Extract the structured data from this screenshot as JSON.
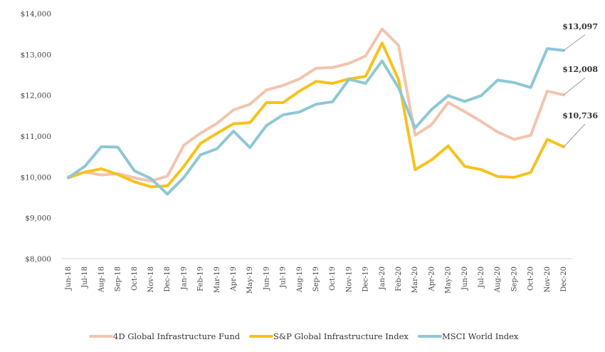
{
  "chart_data": {
    "type": "line",
    "categories": [
      "Jun-18",
      "Jul-18",
      "Aug-18",
      "Sep-18",
      "Oct-18",
      "Nov-18",
      "Dec-18",
      "Jan-19",
      "Feb-19",
      "Mar-19",
      "Apr-19",
      "May-19",
      "Jun-19",
      "Jul-19",
      "Aug-19",
      "Sep-19",
      "Oct-19",
      "Nov-19",
      "Dec-19",
      "Jan-20",
      "Feb-20",
      "Mar-20",
      "Apr-20",
      "May-20",
      "Jun-20",
      "Jul-20",
      "Aug-20",
      "Sep-20",
      "Oct-20",
      "Nov-20",
      "Dec-20"
    ],
    "yticks": [
      8000,
      9000,
      10000,
      11000,
      12000,
      13000,
      14000
    ],
    "ytick_labels": [
      "$8,000",
      "$9,000",
      "$10,000",
      "$11,000",
      "$12,000",
      "$13,000",
      "$14,000"
    ],
    "ylim": [
      8000,
      14000
    ],
    "series": [
      {
        "name": "4D Global Infrastructure Fund",
        "color": "#f2c4ae",
        "values": [
          10000,
          10120,
          10050,
          10080,
          9980,
          9900,
          10020,
          10780,
          11070,
          11310,
          11640,
          11780,
          12130,
          12240,
          12400,
          12660,
          12680,
          12780,
          12960,
          13620,
          13220,
          11020,
          11280,
          11820,
          11600,
          11360,
          11100,
          10920,
          11020,
          12100,
          12008
        ],
        "end_label": "$12,008"
      },
      {
        "name": "S&P Global Infrastructure Index",
        "color": "#f6c21c",
        "values": [
          9980,
          10120,
          10200,
          10060,
          9880,
          9760,
          9780,
          10260,
          10820,
          11070,
          11300,
          11330,
          11820,
          11820,
          12100,
          12340,
          12290,
          12400,
          12460,
          13280,
          12380,
          10180,
          10420,
          10760,
          10260,
          10180,
          10010,
          9990,
          10110,
          10920,
          10736
        ],
        "end_label": "$10,736"
      },
      {
        "name": "MSCI World Index",
        "color": "#8fc7d6",
        "values": [
          9980,
          10260,
          10740,
          10730,
          10150,
          9960,
          9580,
          9990,
          10540,
          10690,
          11120,
          10720,
          11260,
          11520,
          11590,
          11780,
          11840,
          12390,
          12290,
          12840,
          12180,
          11200,
          11650,
          11990,
          11850,
          11990,
          12370,
          12310,
          12190,
          13140,
          13097
        ],
        "end_label": "$13,097"
      }
    ],
    "grid": false,
    "legend": "bottom"
  }
}
